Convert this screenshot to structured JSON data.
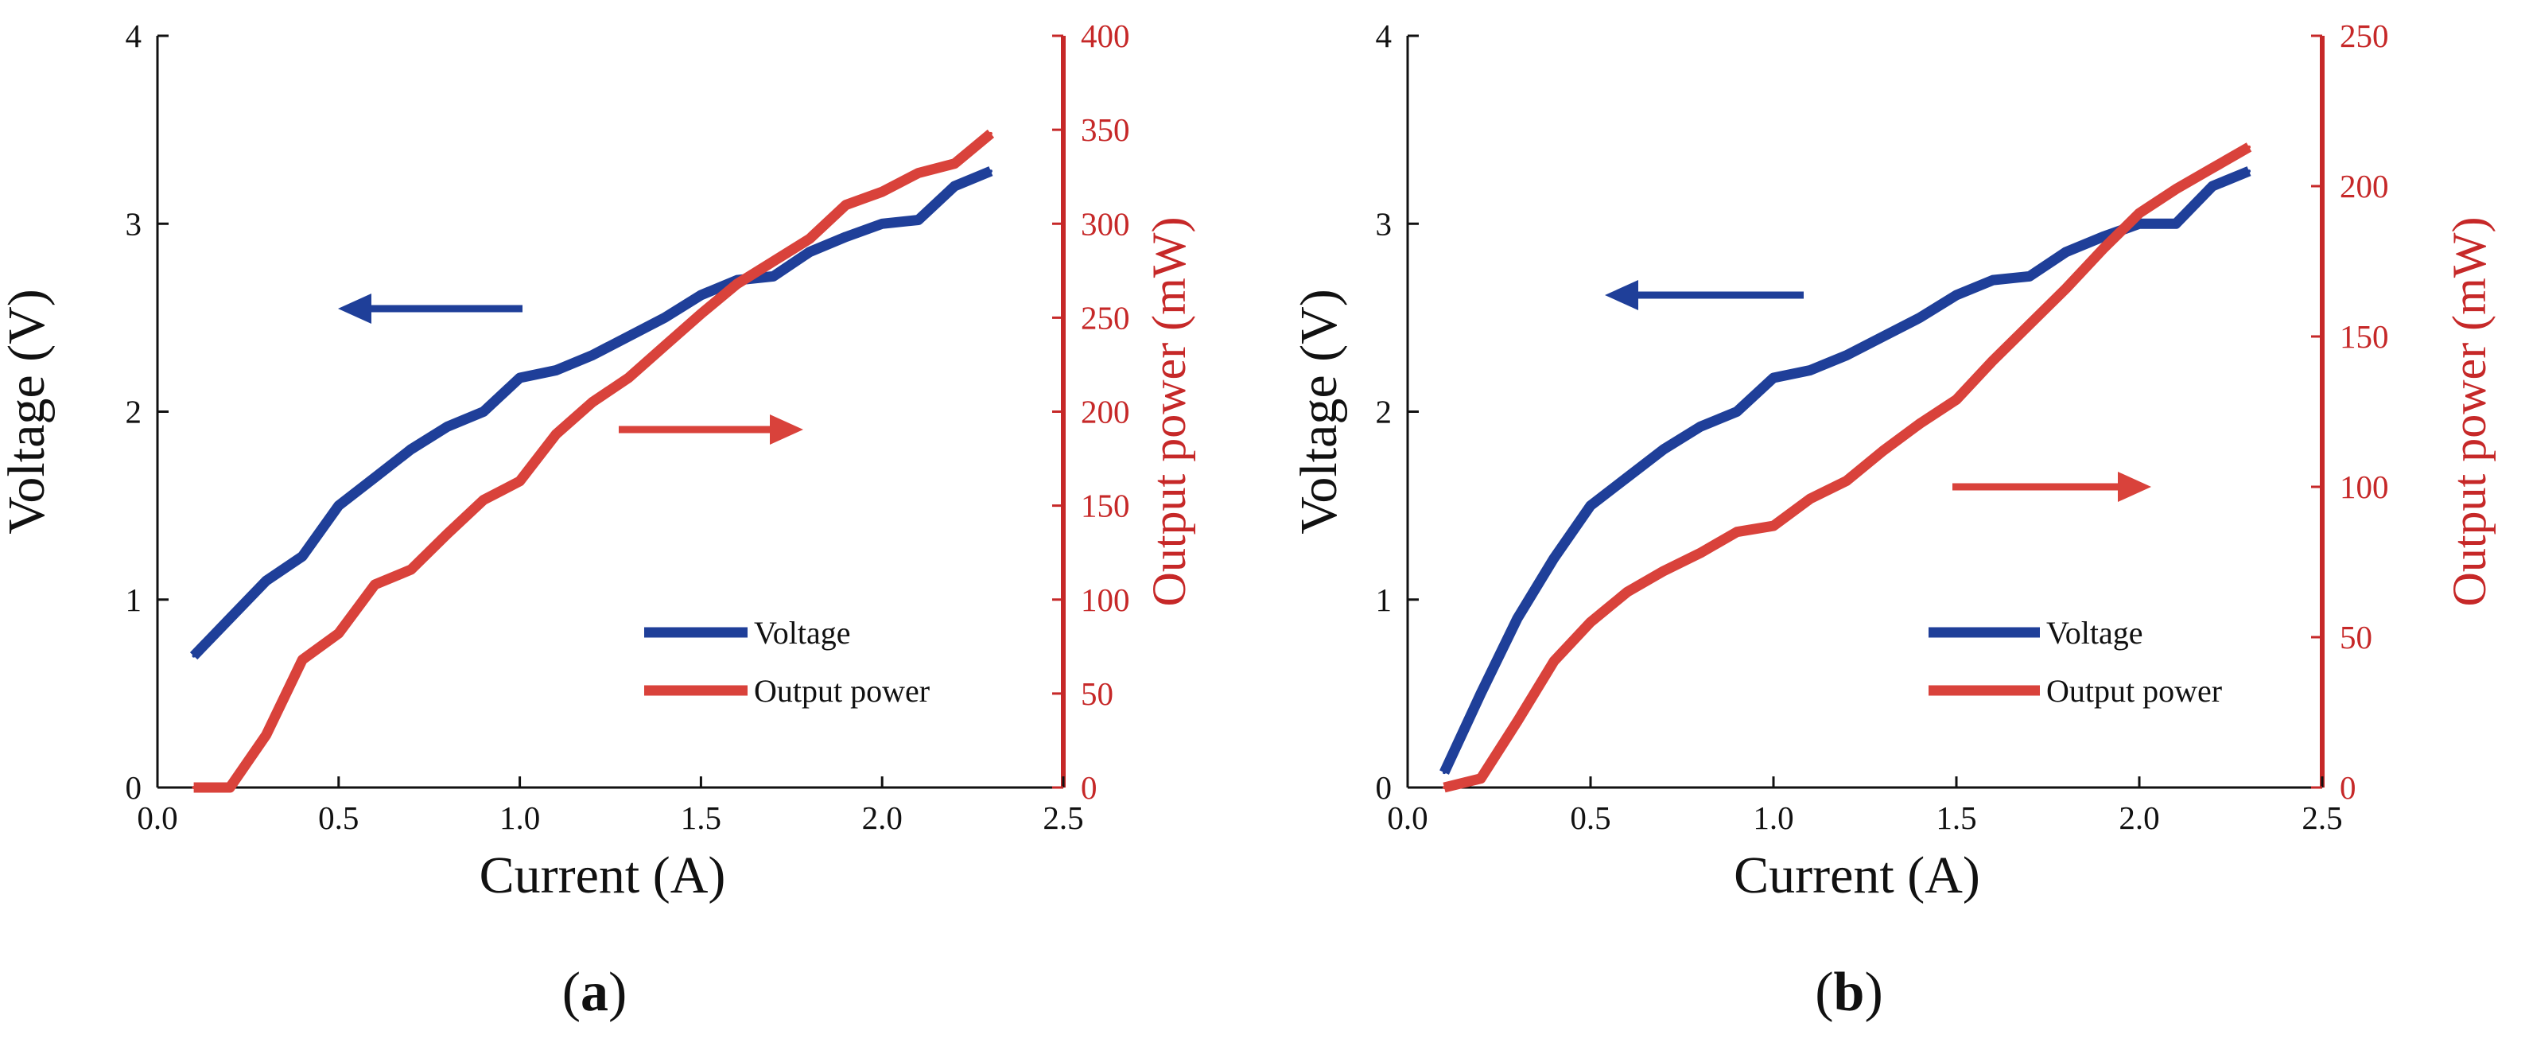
{
  "colors": {
    "voltage": "#1f3f99",
    "power": "#d9423b",
    "power_axis": "#c62828",
    "axis": "#111111"
  },
  "chart_data": [
    {
      "type": "line",
      "panel": "(a)",
      "panel_letter": "a",
      "xlabel": "Current (A)",
      "ylabel_left": "Voltage (V)",
      "ylabel_right": "Output power (mW)",
      "xlim": [
        0.0,
        2.5
      ],
      "ylim_left": [
        0,
        4
      ],
      "ylim_right": [
        0,
        400
      ],
      "xticks": [
        "0.0",
        "0.5",
        "1.0",
        "1.5",
        "2.0",
        "2.5"
      ],
      "yticks_left": [
        "0",
        "1",
        "2",
        "3",
        "4"
      ],
      "yticks_right": [
        "0",
        "50",
        "100",
        "150",
        "200",
        "250",
        "300",
        "350",
        "400"
      ],
      "legend": [
        "Voltage",
        "Output power"
      ],
      "series": [
        {
          "name": "Voltage",
          "axis": "left",
          "x": [
            0.1,
            0.2,
            0.3,
            0.4,
            0.5,
            0.6,
            0.7,
            0.8,
            0.9,
            1.0,
            1.1,
            1.2,
            1.3,
            1.4,
            1.5,
            1.6,
            1.7,
            1.8,
            1.9,
            2.0,
            2.1,
            2.2,
            2.3
          ],
          "values": [
            0.7,
            0.9,
            1.1,
            1.23,
            1.5,
            1.65,
            1.8,
            1.92,
            2.0,
            2.18,
            2.22,
            2.3,
            2.4,
            2.5,
            2.62,
            2.7,
            2.72,
            2.85,
            2.93,
            3.0,
            3.02,
            3.2,
            3.28
          ]
        },
        {
          "name": "Output power",
          "axis": "right",
          "x": [
            0.1,
            0.2,
            0.3,
            0.4,
            0.5,
            0.6,
            0.7,
            0.8,
            0.9,
            1.0,
            1.1,
            1.2,
            1.3,
            1.4,
            1.5,
            1.6,
            1.7,
            1.8,
            1.9,
            2.0,
            2.1,
            2.2,
            2.3
          ],
          "values": [
            0,
            0,
            28,
            68,
            82,
            108,
            116,
            135,
            153,
            163,
            188,
            205,
            218,
            235,
            252,
            268,
            280,
            292,
            310,
            317,
            327,
            332,
            348
          ]
        }
      ]
    },
    {
      "type": "line",
      "panel": "(b)",
      "panel_letter": "b",
      "xlabel": "Current (A)",
      "ylabel_left": "Voltage (V)",
      "ylabel_right": "Output power (mW)",
      "xlim": [
        0.0,
        2.5
      ],
      "ylim_left": [
        0,
        4
      ],
      "ylim_right": [
        0,
        250
      ],
      "xticks": [
        "0.0",
        "0.5",
        "1.0",
        "1.5",
        "2.0",
        "2.5"
      ],
      "yticks_left": [
        "0",
        "1",
        "2",
        "3",
        "4"
      ],
      "yticks_right": [
        "0",
        "50",
        "100",
        "150",
        "200",
        "250"
      ],
      "legend": [
        "Voltage",
        "Output power"
      ],
      "series": [
        {
          "name": "Voltage",
          "axis": "left",
          "x": [
            0.1,
            0.2,
            0.3,
            0.4,
            0.5,
            0.6,
            0.7,
            0.8,
            0.9,
            1.0,
            1.1,
            1.2,
            1.3,
            1.4,
            1.5,
            1.6,
            1.7,
            1.8,
            1.9,
            2.0,
            2.1,
            2.2,
            2.3
          ],
          "values": [
            0.08,
            0.5,
            0.9,
            1.22,
            1.5,
            1.65,
            1.8,
            1.92,
            2.0,
            2.18,
            2.22,
            2.3,
            2.4,
            2.5,
            2.62,
            2.7,
            2.72,
            2.85,
            2.93,
            3.0,
            3.0,
            3.2,
            3.28
          ]
        },
        {
          "name": "Output power",
          "axis": "right",
          "x": [
            0.1,
            0.2,
            0.3,
            0.4,
            0.5,
            0.6,
            0.7,
            0.8,
            0.9,
            1.0,
            1.1,
            1.2,
            1.3,
            1.4,
            1.5,
            1.6,
            1.7,
            1.8,
            1.9,
            2.0,
            2.1,
            2.2,
            2.3
          ],
          "values": [
            0,
            3,
            22,
            42,
            55,
            65,
            72,
            78,
            85,
            87,
            96,
            102,
            112,
            121,
            129,
            142,
            154,
            166,
            179,
            191,
            199,
            206,
            213
          ]
        }
      ]
    }
  ]
}
